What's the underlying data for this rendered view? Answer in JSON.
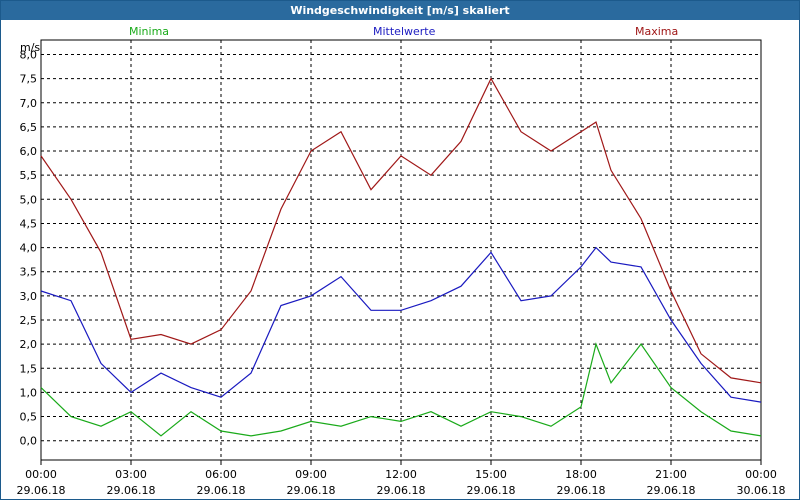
{
  "chart_data": {
    "type": "line",
    "title": "Windgeschwindigkeit [m/s] skaliert",
    "ylabel": "m/s",
    "ylim": [
      -0.4,
      8.3
    ],
    "y_ticks": [
      "0,0",
      "0,5",
      "1,0",
      "1,5",
      "2,0",
      "2,5",
      "3,0",
      "3,5",
      "4,0",
      "4,5",
      "5,0",
      "5,5",
      "6,0",
      "6,5",
      "7,0",
      "7,5",
      "8,0"
    ],
    "y_tick_values": [
      0,
      0.5,
      1,
      1.5,
      2,
      2.5,
      3,
      3.5,
      4,
      4.5,
      5,
      5.5,
      6,
      6.5,
      7,
      7.5,
      8
    ],
    "x_ticks": [
      {
        "time": "00:00",
        "date": "29.06.18"
      },
      {
        "time": "03:00",
        "date": "29.06.18"
      },
      {
        "time": "06:00",
        "date": "29.06.18"
      },
      {
        "time": "09:00",
        "date": "29.06.18"
      },
      {
        "time": "12:00",
        "date": "29.06.18"
      },
      {
        "time": "15:00",
        "date": "29.06.18"
      },
      {
        "time": "18:00",
        "date": "29.06.18"
      },
      {
        "time": "21:00",
        "date": "29.06.18"
      },
      {
        "time": "00:00",
        "date": "30.06.18"
      }
    ],
    "xlim_hours": [
      0,
      24
    ],
    "colors": {
      "Minima": "#1aaa1a",
      "Mittelwerte": "#1a1ac0",
      "Maxima": "#a01818"
    },
    "series": [
      {
        "name": "Minima",
        "x": [
          0,
          1,
          2,
          3,
          4,
          5,
          6,
          7,
          8,
          9,
          10,
          11,
          12,
          13,
          14,
          15,
          16,
          17,
          18,
          18.5,
          19,
          20,
          21,
          22,
          23,
          24
        ],
        "values": [
          1.1,
          0.5,
          0.3,
          0.6,
          0.1,
          0.6,
          0.2,
          0.1,
          0.2,
          0.4,
          0.3,
          0.5,
          0.4,
          0.6,
          0.3,
          0.6,
          0.5,
          0.3,
          0.7,
          2.0,
          1.2,
          2.0,
          1.1,
          0.6,
          0.2,
          0.1
        ]
      },
      {
        "name": "Mittelwerte",
        "x": [
          0,
          1,
          2,
          3,
          4,
          5,
          6,
          7,
          8,
          9,
          10,
          11,
          12,
          13,
          14,
          15,
          16,
          17,
          18,
          18.5,
          19,
          20,
          21,
          22,
          23,
          24
        ],
        "values": [
          3.1,
          2.9,
          1.6,
          1.0,
          1.4,
          1.1,
          0.9,
          1.4,
          2.8,
          3.0,
          3.4,
          2.7,
          2.7,
          2.9,
          3.2,
          3.9,
          2.9,
          3.0,
          3.6,
          4.0,
          3.7,
          3.6,
          2.5,
          1.6,
          0.9,
          0.8
        ]
      },
      {
        "name": "Maxima",
        "x": [
          0,
          1,
          2,
          3,
          4,
          5,
          6,
          7,
          8,
          9,
          10,
          11,
          12,
          13,
          14,
          15,
          16,
          17,
          18,
          18.5,
          19,
          20,
          21,
          22,
          23,
          24
        ],
        "values": [
          5.9,
          5.0,
          3.9,
          2.1,
          2.2,
          2.0,
          2.3,
          3.1,
          4.8,
          6.0,
          6.4,
          5.2,
          5.9,
          5.5,
          6.2,
          7.5,
          6.4,
          6.0,
          6.4,
          6.6,
          5.6,
          4.6,
          3.1,
          1.8,
          1.3,
          1.2
        ]
      }
    ]
  }
}
